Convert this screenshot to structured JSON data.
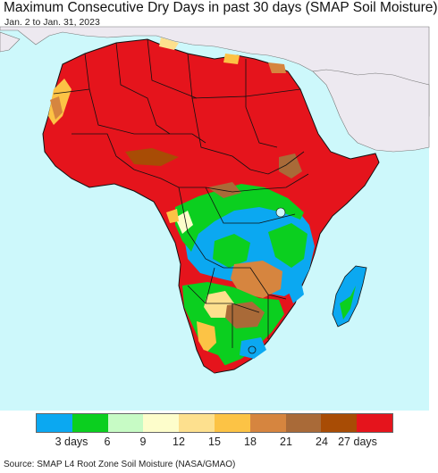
{
  "header": {
    "title": "Maximum Consecutive Dry Days in past 30 days (SMAP Soil Moisture)",
    "date_range": "Jan. 2 to Jan. 31, 2023"
  },
  "map": {
    "region": "Africa",
    "colors": {
      "ocean": "#cdf8fb",
      "no_data_land": "#ede9f0",
      "border": "#111111"
    }
  },
  "legend": {
    "colors": [
      "#0ba8f1",
      "#0bcf1f",
      "#c7fbc5",
      "#fdfdcb",
      "#fde08e",
      "#fcc345",
      "#d6853f",
      "#a96a38",
      "#a84c05",
      "#e5141c"
    ],
    "labels": [
      "3 days",
      "6",
      "9",
      "12",
      "15",
      "18",
      "21",
      "24",
      "27 days"
    ]
  },
  "footer": {
    "source": "Source: SMAP L4 Root Zone Soil Moisture (NASA/GMAO)"
  }
}
